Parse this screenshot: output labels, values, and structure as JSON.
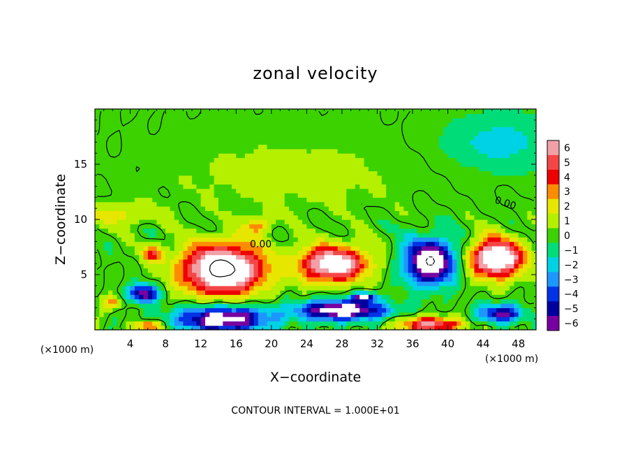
{
  "chart_data": {
    "type": "heatmap",
    "title": "zonal velocity",
    "xlabel": "X−coordinate",
    "ylabel": "Z−coordinate",
    "x_unit_left": "(×1000 m)",
    "x_unit_right": "(×1000 m)",
    "xlim": [
      0,
      50
    ],
    "ylim": [
      0,
      20
    ],
    "x_ticks": [
      4,
      8,
      12,
      16,
      20,
      24,
      28,
      32,
      36,
      40,
      44,
      48
    ],
    "x_tick_labels": [
      "4",
      "8",
      "12",
      "16",
      "20",
      "24",
      "28",
      "32",
      "36",
      "40",
      "44",
      "48"
    ],
    "y_ticks": [
      5,
      10,
      15
    ],
    "y_tick_labels": [
      "5",
      "10",
      "15"
    ],
    "colorbar": {
      "levels": [
        6,
        5,
        4,
        3,
        2,
        1,
        0,
        -1,
        -2,
        -3,
        -4,
        -5,
        -6
      ],
      "labels": [
        "6",
        "5",
        "4",
        "3",
        "2",
        "1",
        "0",
        "−1",
        "−2",
        "−3",
        "−4",
        "−5",
        "−6"
      ],
      "colors": [
        "#f2a0a8",
        "#f54646",
        "#ee0000",
        "#ff8c00",
        "#e6e600",
        "#b4f000",
        "#3cd200",
        "#00dc78",
        "#00d2e6",
        "#1e96ff",
        "#0032e6",
        "#0000a0",
        "#7800a0"
      ]
    },
    "contour_labels": [
      "0.00",
      "0.00"
    ],
    "contour_interval_text": "CONTOUR INTERVAL = 1.000E+01",
    "field_features": [
      {
        "x": 14.5,
        "z": 5.5,
        "rx": 4.5,
        "rz": 2.2,
        "value": 10
      },
      {
        "x": 27,
        "z": 6,
        "rx": 3.8,
        "rz": 1.6,
        "value": 8
      },
      {
        "x": 38,
        "z": 6.2,
        "rx": 2.8,
        "rz": 2.0,
        "value": -9
      },
      {
        "x": 45.5,
        "z": 6.5,
        "rx": 3.0,
        "rz": 1.7,
        "value": 9
      },
      {
        "x": 14.5,
        "z": 1.0,
        "rx": 5.0,
        "rz": 1.1,
        "value": -8
      },
      {
        "x": 28,
        "z": 1.8,
        "rx": 5.0,
        "rz": 0.9,
        "value": -8
      },
      {
        "x": 38,
        "z": 0.5,
        "rx": 3.5,
        "rz": 0.7,
        "value": 6
      },
      {
        "x": 46,
        "z": 1.5,
        "rx": 2.5,
        "rz": 0.8,
        "value": -6
      },
      {
        "x": 5.5,
        "z": 3.3,
        "rx": 1.6,
        "rz": 0.8,
        "value": -7
      },
      {
        "x": 6,
        "z": 0.4,
        "rx": 1.5,
        "rz": 0.4,
        "value": 5
      },
      {
        "x": 2,
        "z": 2.5,
        "rx": 1.2,
        "rz": 0.6,
        "value": 3
      },
      {
        "x": 6.5,
        "z": 7,
        "rx": 1.2,
        "rz": 0.8,
        "value": 4
      },
      {
        "x": 30.5,
        "z": 3.0,
        "rx": 1.2,
        "rz": 0.4,
        "value": -7
      },
      {
        "x": 18.5,
        "z": 9.5,
        "rx": 1.5,
        "rz": 0.8,
        "value": 3
      },
      {
        "x": 3,
        "z": 10.5,
        "rx": 4.0,
        "rz": 1.0,
        "value": 2
      },
      {
        "x": 22,
        "z": 14,
        "rx": 12.0,
        "rz": 3.0,
        "value": 1
      },
      {
        "x": 46,
        "z": 17,
        "rx": 6.0,
        "rz": 2.5,
        "value": -2
      }
    ]
  }
}
